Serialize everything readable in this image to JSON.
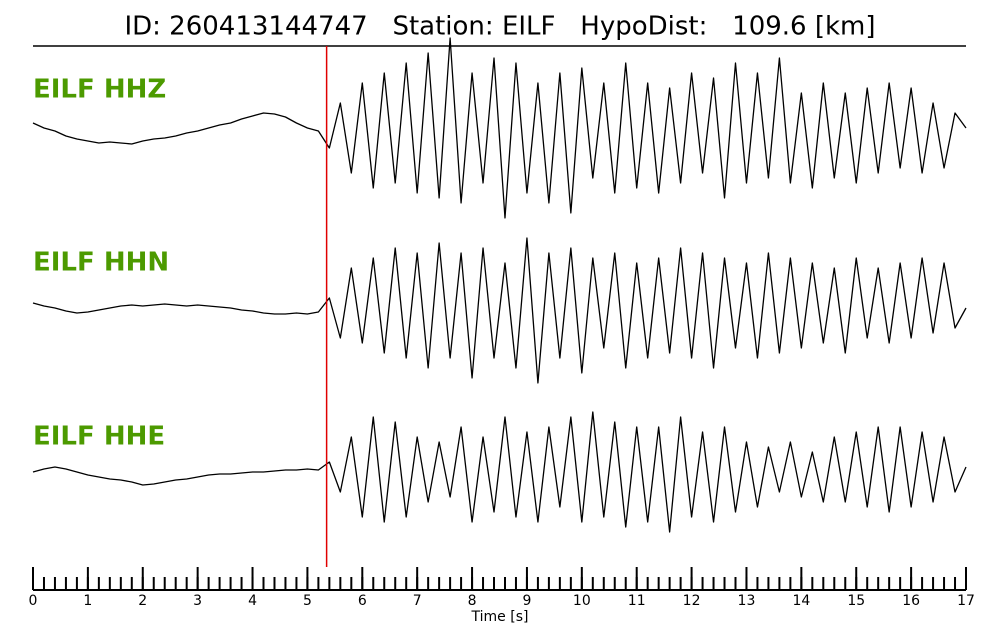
{
  "chart_data": {
    "type": "waveform",
    "title": "ID: 260413144747   Station: EILF   HypoDist:   109.6 [km]",
    "xlabel": "Time [s]",
    "xlim": [
      0,
      17
    ],
    "xticks": [
      0,
      1,
      2,
      3,
      4,
      5,
      6,
      7,
      8,
      9,
      10,
      11,
      12,
      13,
      14,
      15,
      16,
      17
    ],
    "xminor_step": 0.2,
    "ylim": [
      -1,
      1
    ],
    "pick_time": 5.35,
    "pick_color": "#e00000",
    "label_color": "#4c9a00",
    "line_color": "#000000",
    "x": [
      0,
      0.2,
      0.4,
      0.6,
      0.8,
      1,
      1.2,
      1.4,
      1.6,
      1.8,
      2,
      2.2,
      2.4,
      2.6,
      2.8,
      3,
      3.2,
      3.4,
      3.6,
      3.8,
      4,
      4.2,
      4.4,
      4.6,
      4.8,
      5,
      5.2,
      5.4,
      5.6,
      5.8,
      6,
      6.2,
      6.4,
      6.6,
      6.8,
      7,
      7.2,
      7.4,
      7.6,
      7.8,
      8,
      8.2,
      8.4,
      8.6,
      8.8,
      9,
      9.2,
      9.4,
      9.6,
      9.8,
      10,
      10.2,
      10.4,
      10.6,
      10.8,
      11,
      11.2,
      11.4,
      11.6,
      11.8,
      12,
      12.2,
      12.4,
      12.6,
      12.8,
      13,
      13.2,
      13.4,
      13.6,
      13.8,
      14,
      14.2,
      14.4,
      14.6,
      14.8,
      15,
      15.2,
      15.4,
      15.6,
      15.8,
      16,
      16.2,
      16.4,
      16.6,
      16.8,
      17
    ],
    "series": [
      {
        "name": "EILF HHZ",
        "values": [
          0.1,
          0.05,
          0.02,
          -0.03,
          -0.06,
          -0.08,
          -0.1,
          -0.09,
          -0.1,
          -0.11,
          -0.08,
          -0.06,
          -0.05,
          -0.03,
          0,
          0.02,
          0.05,
          0.08,
          0.1,
          0.14,
          0.17,
          0.2,
          0.19,
          0.16,
          0.1,
          0.05,
          0.02,
          -0.15,
          0.3,
          -0.4,
          0.5,
          -0.55,
          0.6,
          -0.5,
          0.7,
          -0.6,
          0.8,
          -0.65,
          0.95,
          -0.7,
          0.6,
          -0.5,
          0.75,
          -0.85,
          0.7,
          -0.6,
          0.5,
          -0.7,
          0.6,
          -0.8,
          0.65,
          -0.45,
          0.5,
          -0.6,
          0.7,
          -0.55,
          0.5,
          -0.6,
          0.45,
          -0.5,
          0.6,
          -0.4,
          0.55,
          -0.65,
          0.7,
          -0.5,
          0.6,
          -0.45,
          0.75,
          -0.5,
          0.4,
          -0.55,
          0.5,
          -0.45,
          0.4,
          -0.5,
          0.45,
          -0.4,
          0.5,
          -0.35,
          0.45,
          -0.4,
          0.3,
          -0.35,
          0.2,
          0.05
        ]
      },
      {
        "name": "EILF HHN",
        "values": [
          0.05,
          0.02,
          0,
          -0.03,
          -0.05,
          -0.04,
          -0.02,
          0,
          0.02,
          0.03,
          0.02,
          0.03,
          0.04,
          0.03,
          0.02,
          0.03,
          0.02,
          0.01,
          0,
          -0.02,
          -0.03,
          -0.05,
          -0.06,
          -0.06,
          -0.05,
          -0.06,
          -0.04,
          0.1,
          -0.3,
          0.4,
          -0.35,
          0.5,
          -0.45,
          0.6,
          -0.5,
          0.55,
          -0.6,
          0.65,
          -0.5,
          0.55,
          -0.7,
          0.6,
          -0.5,
          0.45,
          -0.6,
          0.7,
          -0.75,
          0.55,
          -0.5,
          0.6,
          -0.65,
          0.5,
          -0.4,
          0.55,
          -0.6,
          0.45,
          -0.5,
          0.5,
          -0.45,
          0.6,
          -0.5,
          0.55,
          -0.6,
          0.5,
          -0.4,
          0.45,
          -0.5,
          0.55,
          -0.45,
          0.5,
          -0.4,
          0.45,
          -0.35,
          0.4,
          -0.45,
          0.5,
          -0.3,
          0.4,
          -0.35,
          0.45,
          -0.3,
          0.5,
          -0.25,
          0.45,
          -0.2,
          0
        ]
      },
      {
        "name": "EILF HHE",
        "values": [
          0,
          0.03,
          0.05,
          0.03,
          0,
          -0.03,
          -0.05,
          -0.07,
          -0.08,
          -0.1,
          -0.13,
          -0.12,
          -0.1,
          -0.08,
          -0.07,
          -0.05,
          -0.03,
          -0.02,
          -0.02,
          -0.01,
          0,
          0,
          0.01,
          0.02,
          0.02,
          0.03,
          0.02,
          0.1,
          -0.2,
          0.35,
          -0.45,
          0.55,
          -0.5,
          0.5,
          -0.45,
          0.35,
          -0.3,
          0.3,
          -0.25,
          0.45,
          -0.5,
          0.35,
          -0.4,
          0.55,
          -0.45,
          0.4,
          -0.5,
          0.45,
          -0.35,
          0.55,
          -0.5,
          0.6,
          -0.45,
          0.5,
          -0.55,
          0.45,
          -0.5,
          0.45,
          -0.6,
          0.55,
          -0.45,
          0.4,
          -0.5,
          0.45,
          -0.4,
          0.3,
          -0.35,
          0.25,
          -0.2,
          0.3,
          -0.25,
          0.2,
          -0.3,
          0.35,
          -0.3,
          0.4,
          -0.35,
          0.45,
          -0.4,
          0.45,
          -0.35,
          0.4,
          -0.3,
          0.35,
          -0.2,
          0.05
        ]
      }
    ]
  }
}
